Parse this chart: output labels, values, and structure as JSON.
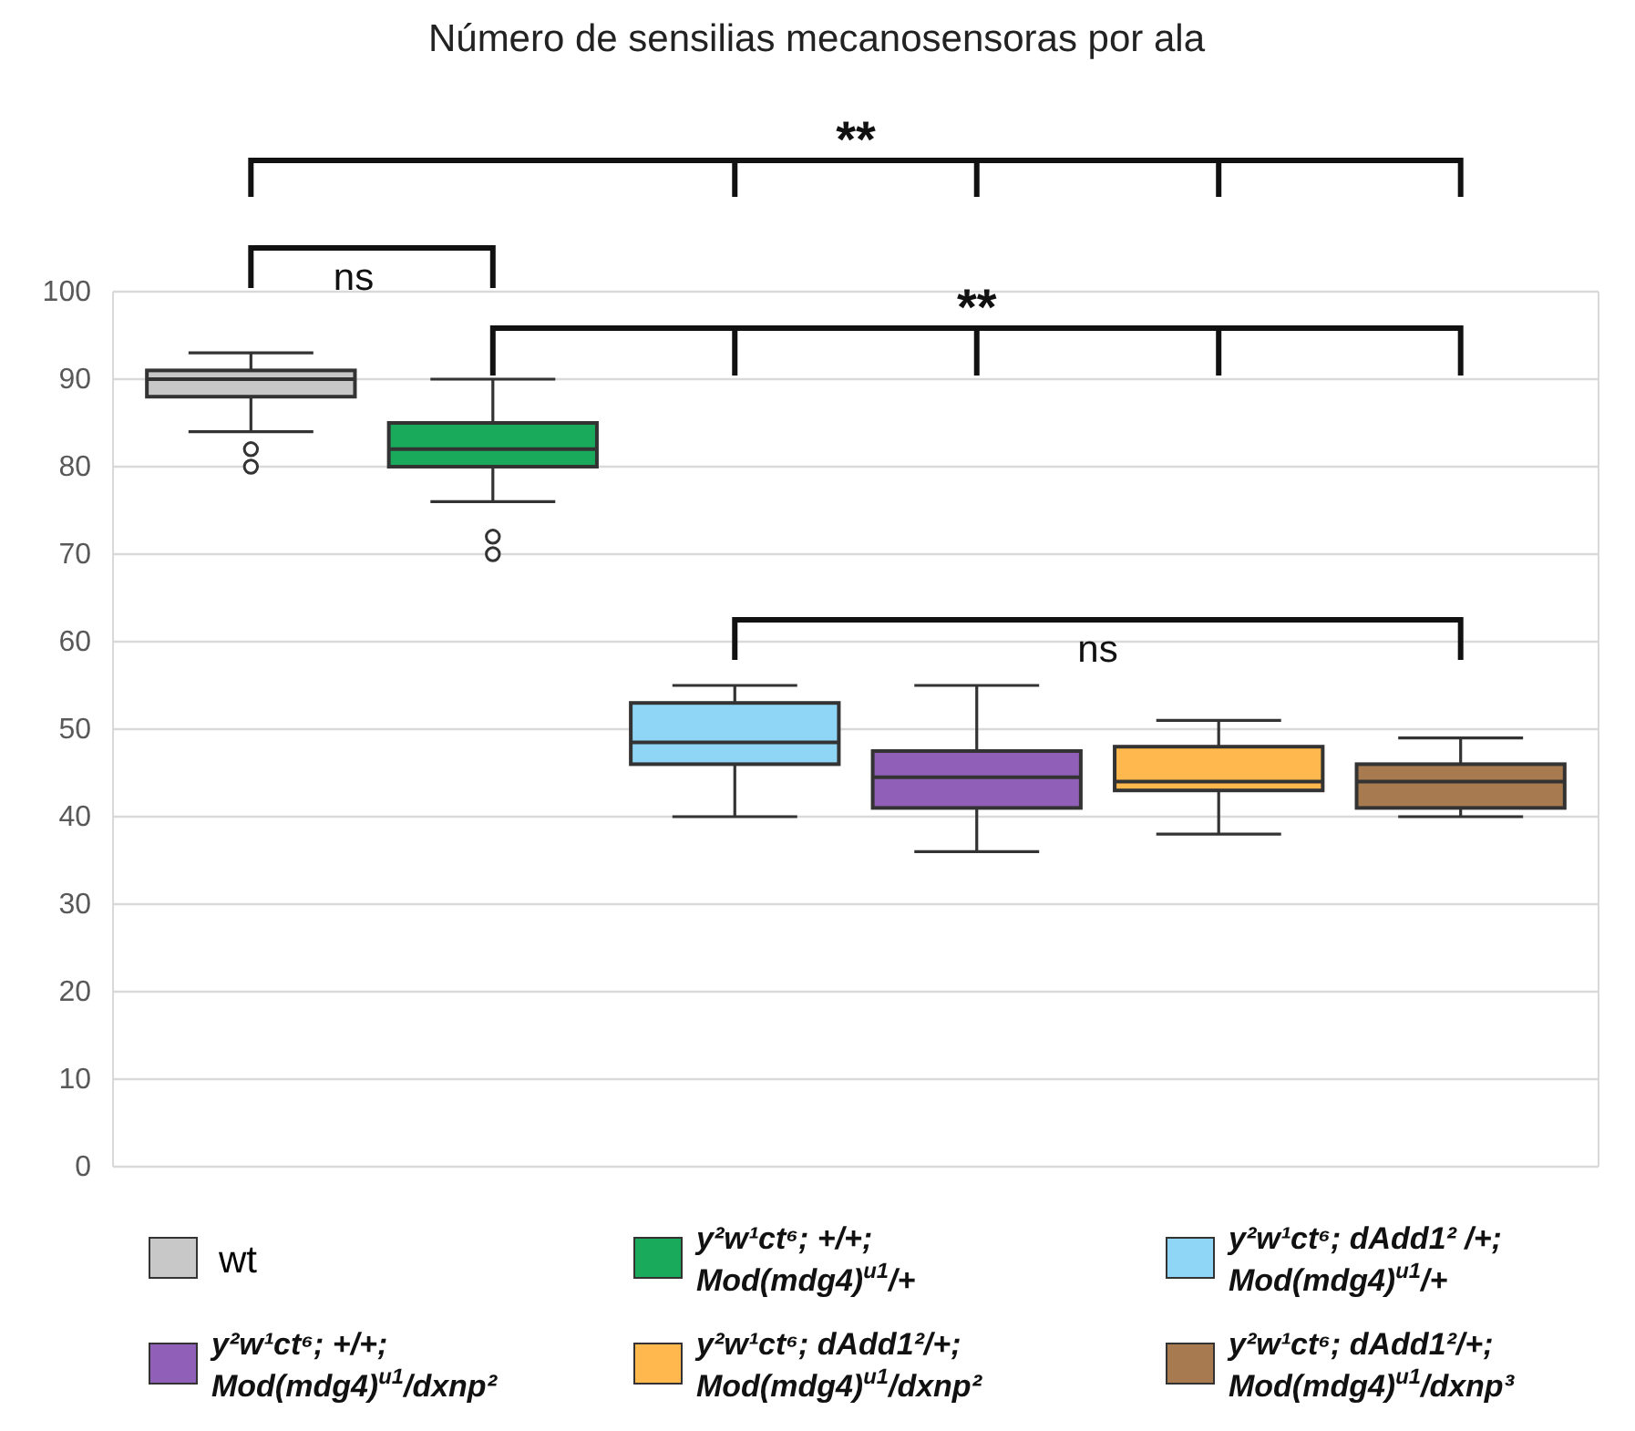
{
  "chart_data": {
    "type": "box",
    "title": "Número de sensilias mecanosensoras por ala",
    "categories": [
      null,
      null,
      null,
      null,
      null,
      null
    ],
    "ylim": [
      0,
      100
    ],
    "yticks": [
      0,
      10,
      20,
      30,
      40,
      50,
      60,
      70,
      80,
      90,
      100
    ],
    "grid": "y",
    "legend": "bottom",
    "series": [
      {
        "name": "wt",
        "color": "#c8c8c8",
        "boxes": [
          {
            "low": 84,
            "q1": 88,
            "median": 90,
            "q3": 91,
            "high": 93,
            "outliers": [
              82,
              80
            ]
          },
          null,
          null,
          null,
          null,
          null
        ]
      },
      {
        "name": "y²w¹ct⁶; +/+; Mod(mdg4)$^{u1}$/+",
        "color": "#1aaa5c",
        "boxes": [
          null,
          {
            "low": 76,
            "q1": 80,
            "median": 82,
            "q3": 85,
            "high": 90,
            "outliers": [
              72,
              70
            ]
          },
          null,
          null,
          null,
          null
        ]
      },
      {
        "name": "y²w¹ct⁶; dAdd1² /+; Mod(mdg4)$^{u1}$/+",
        "color": "#8fd6f6",
        "boxes": [
          null,
          null,
          {
            "low": 40,
            "q1": 46,
            "median": 48.5,
            "q3": 53,
            "high": 55
          },
          null,
          null,
          null
        ]
      },
      {
        "name": "y²w¹ct⁶; +/+; Mod(mdg4)$^{u1}$/dxnp²",
        "color": "#9060b8",
        "boxes": [
          null,
          null,
          null,
          {
            "low": 36,
            "q1": 41,
            "median": 44.5,
            "q3": 47.5,
            "high": 55
          },
          null,
          null
        ]
      },
      {
        "name": "y²w¹ct⁶; dAdd1²/+; Mod(mdg4)$^{u1}$/dxnp²",
        "color": "#ffb84d",
        "boxes": [
          null,
          null,
          null,
          null,
          {
            "low": 38,
            "q1": 43,
            "median": 44,
            "q3": 48,
            "high": 51
          },
          null
        ]
      },
      {
        "name": "y²w¹ct⁶; dAdd1²/+; Mod(mdg4)$^{u1}$/dxnp³",
        "color": "#a87a50",
        "boxes": [
          null,
          null,
          null,
          null,
          null,
          {
            "low": 40,
            "q1": 41,
            "median": 44,
            "q3": 46,
            "high": 49
          }
        ]
      }
    ],
    "annotations": [
      "**",
      "ns",
      "**",
      "ns"
    ]
  }
}
